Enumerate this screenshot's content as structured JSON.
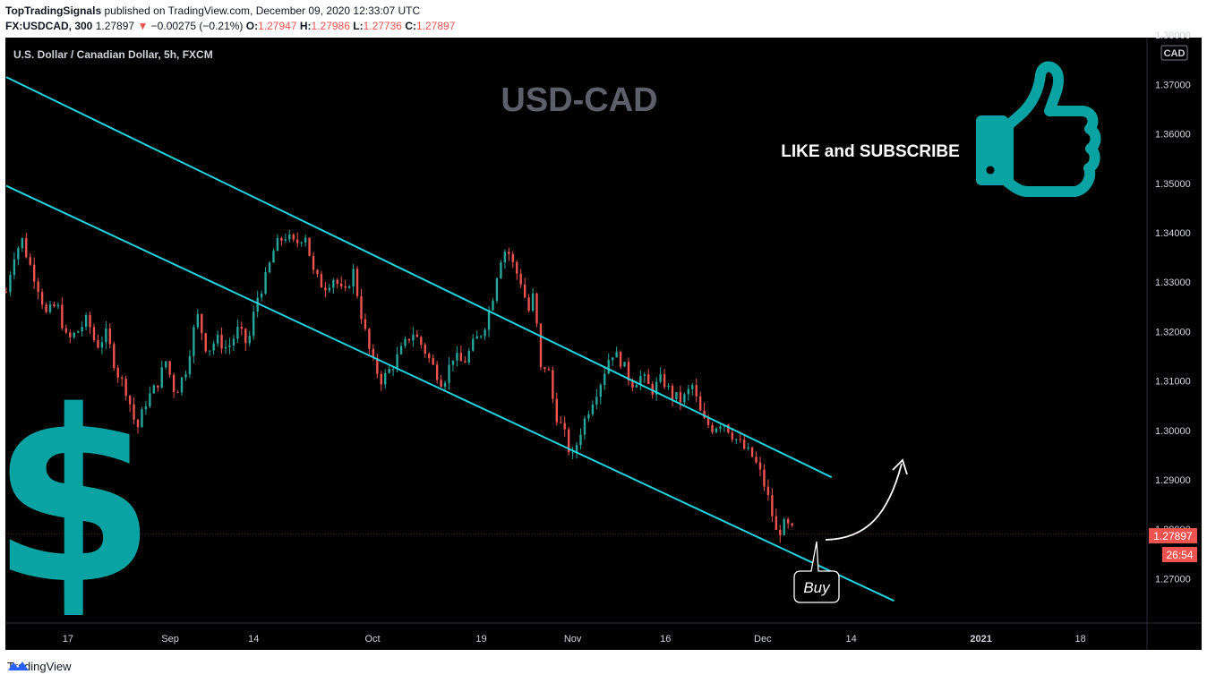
{
  "header": {
    "publisher": "TopTradingSignals",
    "published_text": "published on TradingView.com, December 09, 2020 12:33:07 UTC",
    "symbol": "FX:USDCAD, 300",
    "last": "1.27897",
    "change_arrow": "▼",
    "change": "−0.00275 (−0.21%)",
    "o_label": "O:",
    "o_value": "1.27947",
    "h_label": "H:",
    "h_value": "1.27986",
    "l_label": "L:",
    "l_value": "1.27736",
    "c_label": "C:",
    "c_value": "1.27897"
  },
  "chart_data": {
    "type": "candlestick",
    "title": "USD-CAD",
    "instrument": "U.S. Dollar / Canadian Dollar, 5h, FXCM",
    "currency_badge": "CAD",
    "price_label": "1.27897",
    "countdown_label": "26:54",
    "y_ticks": [
      1.37,
      1.36,
      1.35,
      1.34,
      1.33,
      1.32,
      1.31,
      1.3,
      1.29,
      1.28,
      1.27
    ],
    "y_tick_labels": [
      "1.37000",
      "1.36000",
      "1.35000",
      "1.34000",
      "1.33000",
      "1.32000",
      "1.31000",
      "1.30000",
      "1.29000",
      "1.28000",
      "1.27000"
    ],
    "top_partial_tick": "1.38000",
    "ylim": [
      1.261,
      1.3795
    ],
    "x_ticks": [
      "17",
      "Sep",
      "14",
      "Oct",
      "19",
      "Nov",
      "16",
      "Dec",
      "14",
      "2021",
      "18"
    ],
    "price_path": [
      {
        "d": 0.0,
        "v": 1.328
      },
      {
        "d": 1.0,
        "v": 1.3355
      },
      {
        "d": 2.2,
        "v": 1.3385
      },
      {
        "d": 3.0,
        "v": 1.3345
      },
      {
        "d": 4.2,
        "v": 1.33
      },
      {
        "d": 5.5,
        "v": 1.3235
      },
      {
        "d": 7.0,
        "v": 1.3255
      },
      {
        "d": 8.4,
        "v": 1.318
      },
      {
        "d": 9.8,
        "v": 1.32
      },
      {
        "d": 11.2,
        "v": 1.3225
      },
      {
        "d": 12.4,
        "v": 1.317
      },
      {
        "d": 13.8,
        "v": 1.3195
      },
      {
        "d": 15.2,
        "v": 1.312
      },
      {
        "d": 16.6,
        "v": 1.308
      },
      {
        "d": 18.0,
        "v": 1.3
      },
      {
        "d": 19.3,
        "v": 1.306
      },
      {
        "d": 20.7,
        "v": 1.309
      },
      {
        "d": 22.0,
        "v": 1.314
      },
      {
        "d": 23.3,
        "v": 1.3075
      },
      {
        "d": 24.7,
        "v": 1.312
      },
      {
        "d": 26.3,
        "v": 1.3235
      },
      {
        "d": 27.7,
        "v": 1.316
      },
      {
        "d": 29.0,
        "v": 1.3185
      },
      {
        "d": 30.5,
        "v": 1.3165
      },
      {
        "d": 32.0,
        "v": 1.3205
      },
      {
        "d": 33.3,
        "v": 1.317
      },
      {
        "d": 34.5,
        "v": 1.3265
      },
      {
        "d": 35.7,
        "v": 1.3305
      },
      {
        "d": 37.0,
        "v": 1.337
      },
      {
        "d": 38.4,
        "v": 1.3395
      },
      {
        "d": 39.8,
        "v": 1.3375
      },
      {
        "d": 41.2,
        "v": 1.34
      },
      {
        "d": 42.4,
        "v": 1.3315
      },
      {
        "d": 43.8,
        "v": 1.329
      },
      {
        "d": 45.2,
        "v": 1.331
      },
      {
        "d": 46.6,
        "v": 1.327
      },
      {
        "d": 47.8,
        "v": 1.3325
      },
      {
        "d": 49.0,
        "v": 1.323
      },
      {
        "d": 50.4,
        "v": 1.314
      },
      {
        "d": 51.8,
        "v": 1.31
      },
      {
        "d": 53.2,
        "v": 1.313
      },
      {
        "d": 54.6,
        "v": 1.3165
      },
      {
        "d": 56.0,
        "v": 1.32
      },
      {
        "d": 57.4,
        "v": 1.317
      },
      {
        "d": 58.8,
        "v": 1.313
      },
      {
        "d": 60.2,
        "v": 1.3095
      },
      {
        "d": 61.6,
        "v": 1.315
      },
      {
        "d": 63.0,
        "v": 1.3135
      },
      {
        "d": 64.4,
        "v": 1.3175
      },
      {
        "d": 65.8,
        "v": 1.3205
      },
      {
        "d": 67.0,
        "v": 1.3265
      },
      {
        "d": 68.0,
        "v": 1.3345
      },
      {
        "d": 69.0,
        "v": 1.337
      },
      {
        "d": 70.0,
        "v": 1.333
      },
      {
        "d": 71.0,
        "v": 1.33
      },
      {
        "d": 72.0,
        "v": 1.324
      },
      {
        "d": 72.8,
        "v": 1.328
      },
      {
        "d": 73.6,
        "v": 1.312
      },
      {
        "d": 74.6,
        "v": 1.3135
      },
      {
        "d": 75.6,
        "v": 1.304
      },
      {
        "d": 77.0,
        "v": 1.299
      },
      {
        "d": 78.0,
        "v": 1.294
      },
      {
        "d": 79.2,
        "v": 1.3
      },
      {
        "d": 80.6,
        "v": 1.3055
      },
      {
        "d": 82.0,
        "v": 1.31
      },
      {
        "d": 83.4,
        "v": 1.316
      },
      {
        "d": 84.8,
        "v": 1.314
      },
      {
        "d": 86.2,
        "v": 1.3095
      },
      {
        "d": 87.6,
        "v": 1.311
      },
      {
        "d": 89.0,
        "v": 1.308
      },
      {
        "d": 90.4,
        "v": 1.3105
      },
      {
        "d": 91.8,
        "v": 1.307
      },
      {
        "d": 93.2,
        "v": 1.306
      },
      {
        "d": 94.6,
        "v": 1.309
      },
      {
        "d": 96.0,
        "v": 1.302
      },
      {
        "d": 97.4,
        "v": 1.3005
      },
      {
        "d": 98.8,
        "v": 1.302
      },
      {
        "d": 100.2,
        "v": 1.299
      },
      {
        "d": 101.6,
        "v": 1.2965
      },
      {
        "d": 103.0,
        "v": 1.2945
      },
      {
        "d": 104.2,
        "v": 1.2905
      },
      {
        "d": 105.2,
        "v": 1.2855
      },
      {
        "d": 106.2,
        "v": 1.279
      },
      {
        "d": 107.4,
        "v": 1.281
      },
      {
        "d": 108.8,
        "v": 1.279
      }
    ],
    "channel_lines": [
      {
        "name": "upper",
        "from": {
          "d": 0.0,
          "v": 1.3715
        },
        "to": {
          "d": 113.8,
          "v": 1.2905
        }
      },
      {
        "name": "lower",
        "from": {
          "d": 0.0,
          "v": 1.3495
        },
        "to": {
          "d": 122.4,
          "v": 1.2655
        }
      }
    ],
    "annotations": {
      "buy_label": "Buy",
      "cta_text": "LIKE and SUBSCRIBE",
      "accent_color": "#1ab7b7"
    }
  },
  "footer": {
    "brand": "TradingView"
  }
}
